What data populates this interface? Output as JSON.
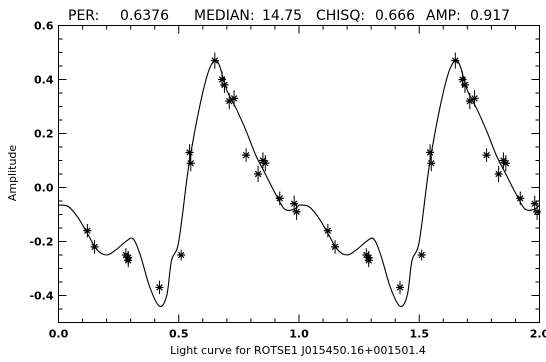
{
  "header": {
    "per_label": "PER:",
    "per_value": "0.6376",
    "median_label": "MEDIAN:",
    "median_value": "14.75",
    "chisq_label": "CHISQ:",
    "chisq_value": "0.666",
    "amp_label": "AMP:",
    "amp_value": "0.917"
  },
  "chart_data": {
    "type": "scatter",
    "title": "",
    "xlabel": "Light curve for ROTSE1 J015450.16+001501.4",
    "ylabel": "Amplitude",
    "xlim": [
      0.0,
      2.0
    ],
    "ylim": [
      -0.5,
      0.6
    ],
    "y_inverted": false,
    "grid": false,
    "legend": "none",
    "x_ticks": [
      "0.0",
      "0.5",
      "1.0",
      "1.5",
      "2.0"
    ],
    "y_ticks": [
      "-0.4",
      "-0.2",
      "0.0",
      "0.2",
      "0.4",
      "0.6"
    ],
    "series": [
      {
        "kind": "points",
        "x": [
          0.12,
          0.15,
          0.28,
          0.29,
          0.29,
          0.42,
          0.51,
          0.545,
          0.55,
          0.65,
          0.68,
          0.69,
          0.71,
          0.73,
          0.78,
          0.83,
          0.85,
          0.86,
          0.92,
          0.98,
          0.99
        ],
        "y": [
          -0.16,
          -0.22,
          -0.25,
          -0.26,
          -0.27,
          -0.37,
          -0.25,
          0.13,
          0.09,
          0.47,
          0.4,
          0.38,
          0.32,
          0.33,
          0.12,
          0.05,
          0.1,
          0.09,
          -0.04,
          -0.06,
          -0.09
        ],
        "yerr": [
          0.025,
          0.025,
          0.025,
          0.025,
          0.025,
          0.025,
          0.02,
          0.03,
          0.03,
          0.03,
          0.03,
          0.03,
          0.03,
          0.03,
          0.025,
          0.03,
          0.03,
          0.03,
          0.025,
          0.03,
          0.03
        ]
      },
      {
        "kind": "curve",
        "x": [
          0.0,
          0.04,
          0.08,
          0.12,
          0.16,
          0.2,
          0.24,
          0.28,
          0.31,
          0.34,
          0.38,
          0.42,
          0.45,
          0.47,
          0.5,
          0.54,
          0.58,
          0.62,
          0.65,
          0.67,
          0.7,
          0.74,
          0.78,
          0.82,
          0.86,
          0.9,
          0.94,
          0.98,
          1.0
        ],
        "y": [
          -0.065,
          -0.07,
          -0.11,
          -0.17,
          -0.23,
          -0.25,
          -0.23,
          -0.2,
          -0.19,
          -0.25,
          -0.37,
          -0.44,
          -0.4,
          -0.27,
          -0.2,
          0.07,
          0.27,
          0.42,
          0.47,
          0.45,
          0.36,
          0.29,
          0.21,
          0.12,
          0.05,
          -0.02,
          -0.08,
          -0.08,
          -0.065
        ]
      }
    ]
  }
}
